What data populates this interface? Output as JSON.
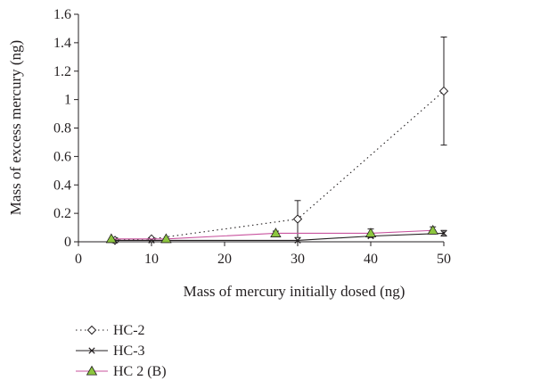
{
  "chart_data": {
    "type": "line",
    "title": "",
    "xlabel": "Mass of mercury initially dosed (ng)",
    "ylabel": "Mass of excess mercury (ng)",
    "xlim": [
      0,
      50
    ],
    "ylim": [
      0,
      1.6
    ],
    "x_ticks": [
      0,
      10,
      20,
      30,
      40,
      50
    ],
    "y_ticks": [
      0,
      0.2,
      0.4,
      0.6,
      0.8,
      1,
      1.2,
      1.4,
      1.6
    ],
    "x_tick_labels": [
      "0",
      "10",
      "20",
      "30",
      "40",
      "50"
    ],
    "y_tick_labels": [
      "0",
      "0.2",
      "0.4",
      "0.6",
      "0.8",
      "1",
      "1.2",
      "1.4",
      "1.6"
    ],
    "grid": false,
    "legend_position": "bottom-left",
    "series": [
      {
        "name": "HC-2",
        "marker": "diamond-open",
        "line_style": "dotted",
        "color": "#231f20",
        "x": [
          5,
          10,
          30,
          50
        ],
        "y": [
          0.01,
          0.02,
          0.16,
          1.06
        ],
        "error": [
          0,
          0,
          0.13,
          0.38
        ]
      },
      {
        "name": "HC-3",
        "marker": "x",
        "line_style": "solid",
        "color": "#231f20",
        "x": [
          5,
          10,
          30,
          40,
          50
        ],
        "y": [
          0.01,
          0.01,
          0.01,
          0.04,
          0.06
        ],
        "error": [
          0,
          0,
          0,
          0,
          0.02
        ]
      },
      {
        "name": "HC 2 (B)",
        "marker": "triangle-filled",
        "line_style": "solid",
        "color": "#c8539e",
        "marker_color": "#8dc63f",
        "x": [
          4.5,
          12,
          27,
          40,
          48.5
        ],
        "y": [
          0.02,
          0.02,
          0.06,
          0.06,
          0.08
        ],
        "error": [
          0,
          0,
          0.015,
          0.03,
          0.025
        ]
      }
    ]
  }
}
